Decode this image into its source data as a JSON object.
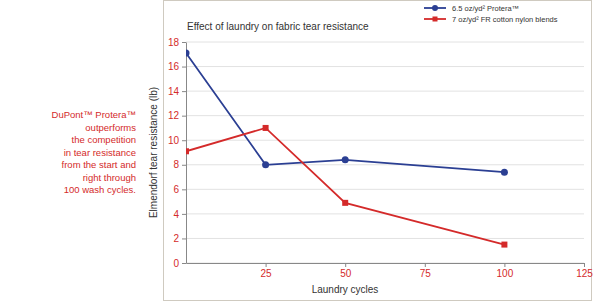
{
  "chart_data": {
    "type": "line",
    "title": "Effect of laundry on fabric tear resistance",
    "x_label": "Laundry cycles",
    "y_label": "Elmendorf tear resistance (lb)",
    "annotation": [
      "DuPont™ Protera™",
      "outperforms",
      "the competition",
      "in tear resistance",
      "from the start and",
      "right through",
      "100 wash cycles."
    ],
    "x": [
      0,
      25,
      50,
      100
    ],
    "series": [
      {
        "name": "6.5 oz/yd² Protera™",
        "color": "#2b3f93",
        "marker": "circle",
        "values": [
          17.1,
          8.0,
          8.4,
          7.4
        ]
      },
      {
        "name": "7 oz/yd² FR cotton nylon blends",
        "color": "#d42a2a",
        "marker": "square",
        "values": [
          9.1,
          11.0,
          4.9,
          1.5
        ]
      }
    ],
    "xlim": [
      0,
      125
    ],
    "xticks": [
      25,
      50,
      75,
      100,
      125
    ],
    "ylim": [
      0,
      18
    ],
    "yticks": [
      0,
      2,
      4,
      6,
      8,
      10,
      12,
      14,
      16,
      18
    ],
    "grid": true,
    "legend": "top-right"
  }
}
